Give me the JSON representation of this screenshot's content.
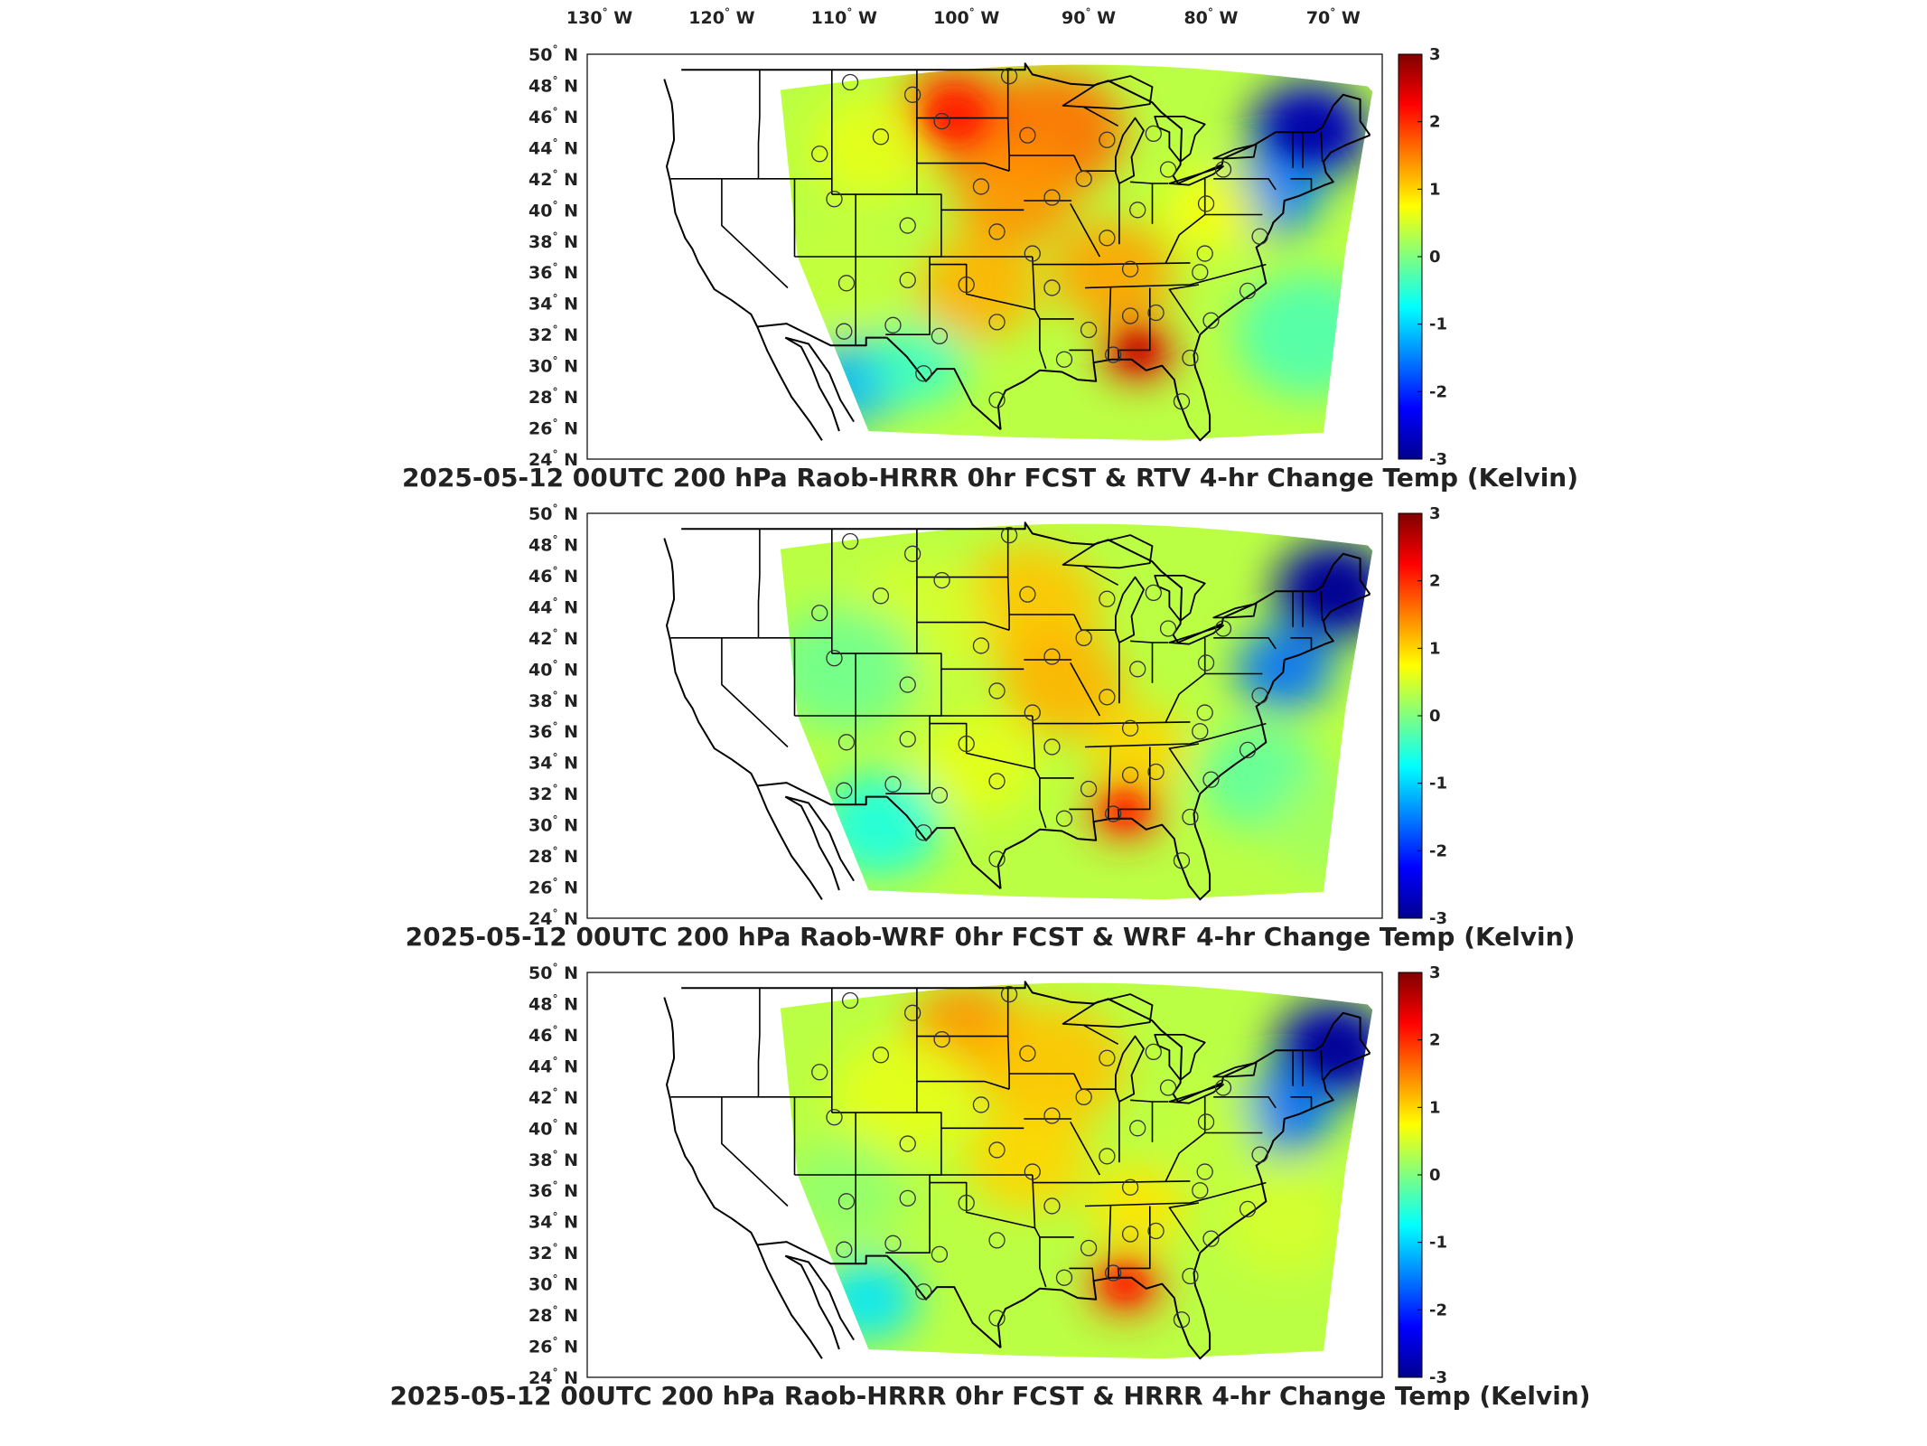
{
  "longitude_labels": [
    {
      "value": "130",
      "suffix": "W"
    },
    {
      "value": "120",
      "suffix": "W"
    },
    {
      "value": "110",
      "suffix": "W"
    },
    {
      "value": "100",
      "suffix": "W"
    },
    {
      "value": "90",
      "suffix": "W"
    },
    {
      "value": "80",
      "suffix": "W"
    },
    {
      "value": "70",
      "suffix": "W"
    }
  ],
  "latitude_labels": [
    "50",
    "48",
    "46",
    "44",
    "42",
    "40",
    "38",
    "36",
    "34",
    "32",
    "30",
    "28",
    "26",
    "24"
  ],
  "latitude_suffix": "N",
  "colorbar": {
    "ticks": [
      "3",
      "2",
      "1",
      "0",
      "-1",
      "-2",
      "-3"
    ],
    "min": -3,
    "max": 3,
    "colormap": "jet",
    "colors": [
      "#00008f",
      "#0000ff",
      "#0080ff",
      "#00ffff",
      "#80ff80",
      "#ffff00",
      "#ff8000",
      "#ff0000",
      "#800000"
    ]
  },
  "panels": [
    {
      "title": "2025-05-12 00UTC 200 hPa Raob-HRRR 0hr FCST & RTV 4-hr Change Temp (Kelvin)",
      "pattern": "rtv"
    },
    {
      "title": "2025-05-12 00UTC 200 hPa Raob-WRF 0hr FCST & WRF 4-hr Change Temp (Kelvin)",
      "pattern": "wrf"
    },
    {
      "title": "2025-05-12 00UTC 200 hPa Raob-HRRR 0hr FCST & HRRR 4-hr Change Temp (Kelvin)",
      "pattern": "hrrr"
    }
  ],
  "map_extent": {
    "lon_min": -131,
    "lon_max": -66,
    "lat_min": 24,
    "lat_max": 50
  },
  "raob_stations": [
    {
      "lon": -109.5,
      "lat": 48.2
    },
    {
      "lon": -104.4,
      "lat": 47.4
    },
    {
      "lon": -96.5,
      "lat": 48.6
    },
    {
      "lon": -107.0,
      "lat": 44.7
    },
    {
      "lon": -102.0,
      "lat": 45.7
    },
    {
      "lon": -95.0,
      "lat": 44.8
    },
    {
      "lon": -88.5,
      "lat": 44.5
    },
    {
      "lon": -84.7,
      "lat": 44.9
    },
    {
      "lon": -112.0,
      "lat": 43.6
    },
    {
      "lon": -98.8,
      "lat": 41.5
    },
    {
      "lon": -90.4,
      "lat": 42.0
    },
    {
      "lon": -83.5,
      "lat": 42.6
    },
    {
      "lon": -79.0,
      "lat": 42.6
    },
    {
      "lon": -110.8,
      "lat": 40.7
    },
    {
      "lon": -93.0,
      "lat": 40.8
    },
    {
      "lon": -86.0,
      "lat": 40.0
    },
    {
      "lon": -80.4,
      "lat": 40.4
    },
    {
      "lon": -104.8,
      "lat": 39.0
    },
    {
      "lon": -97.5,
      "lat": 38.6
    },
    {
      "lon": -88.5,
      "lat": 38.2
    },
    {
      "lon": -76.0,
      "lat": 38.3
    },
    {
      "lon": -94.6,
      "lat": 37.2
    },
    {
      "lon": -86.6,
      "lat": 36.2
    },
    {
      "lon": -80.5,
      "lat": 37.2
    },
    {
      "lon": -109.8,
      "lat": 35.3
    },
    {
      "lon": -104.8,
      "lat": 35.5
    },
    {
      "lon": -100.0,
      "lat": 35.2
    },
    {
      "lon": -93.0,
      "lat": 35.0
    },
    {
      "lon": -80.9,
      "lat": 36.0
    },
    {
      "lon": -77.0,
      "lat": 34.8
    },
    {
      "lon": -106.0,
      "lat": 32.6
    },
    {
      "lon": -97.5,
      "lat": 32.8
    },
    {
      "lon": -90.0,
      "lat": 32.3
    },
    {
      "lon": -86.6,
      "lat": 33.2
    },
    {
      "lon": -84.5,
      "lat": 33.4
    },
    {
      "lon": -80.0,
      "lat": 32.9
    },
    {
      "lon": -110.0,
      "lat": 32.2
    },
    {
      "lon": -102.2,
      "lat": 31.9
    },
    {
      "lon": -92.0,
      "lat": 30.4
    },
    {
      "lon": -88.0,
      "lat": 30.7
    },
    {
      "lon": -81.7,
      "lat": 30.5
    },
    {
      "lon": -103.5,
      "lat": 29.5
    },
    {
      "lon": -97.5,
      "lat": 27.8
    },
    {
      "lon": -82.4,
      "lat": 27.7
    }
  ]
}
